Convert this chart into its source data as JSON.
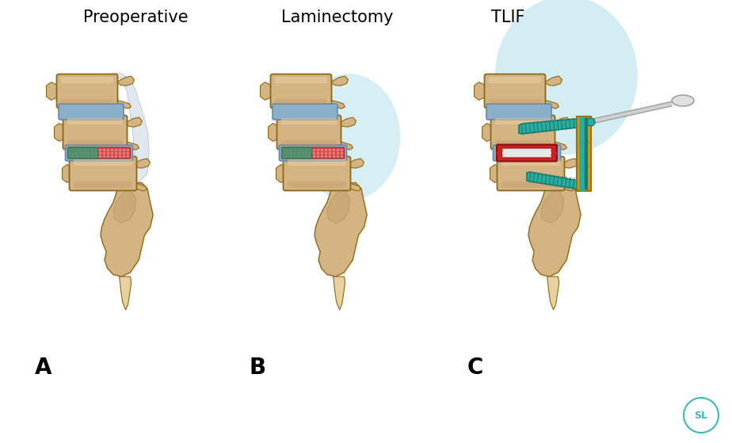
{
  "title_a": "Preoperative",
  "title_b": "Laminectomy",
  "title_c": "TLIF",
  "label_a": "A",
  "label_b": "B",
  "label_c": "C",
  "bg_color": "#ffffff",
  "bone_base": "#D4B483",
  "bone_light": "#E8D0A0",
  "bone_dark": "#B89060",
  "bone_edge": "#8B6914",
  "disc_blue": "#8AAFC8",
  "disc_blue_light": "#B0C8DC",
  "disc_red": "#CC3333",
  "disc_green": "#3D9970",
  "nerve_color": "#C0CCDC",
  "screw_teal": "#2AADA0",
  "screw_dark": "#1A7A70",
  "gold_conn": "#C8A020",
  "gold_dark": "#9A7010",
  "glow_blue": "#A8DCE8",
  "title_fontsize": 15,
  "label_fontsize": 20,
  "sl_color": "#40B8B0"
}
